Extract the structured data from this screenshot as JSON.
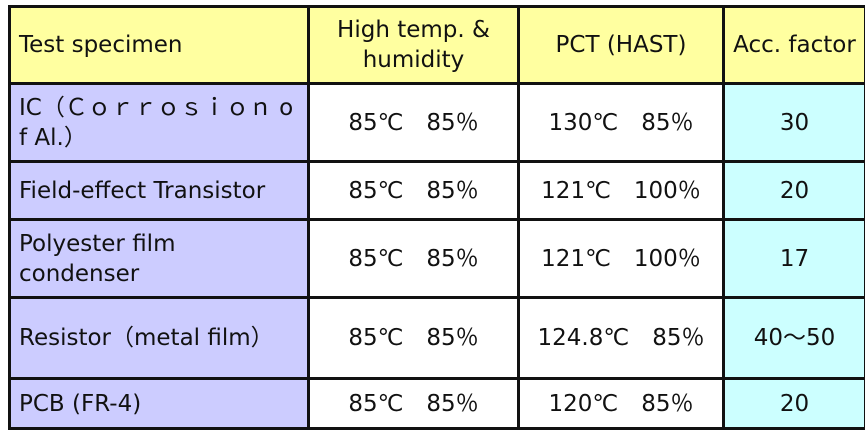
{
  "colors": {
    "header_bg": "#ffffa0",
    "specimen_bg": "#ccccff",
    "factor_bg": "#ccffff",
    "cell_bg": "#ffffff"
  },
  "header": {
    "specimen": "Test specimen",
    "high_temp": "High temp. & humidity",
    "pct": "PCT (HAST)",
    "acc_factor": "Acc. factor"
  },
  "rows": [
    {
      "specimen": "IC（Ｃｏｒｒｏｓｉｏｎ of Al.）",
      "high_temp": "85℃　85％",
      "pct": "130℃　85％",
      "acc_factor": "30"
    },
    {
      "specimen": "Field-effect Transistor",
      "high_temp": "85℃　85％",
      "pct": "121℃　100％",
      "acc_factor": "20"
    },
    {
      "specimen": "Polyester film condenser",
      "high_temp": "85℃　85％",
      "pct": "121℃　100％",
      "acc_factor": "17"
    },
    {
      "specimen": "Resistor（metal film）",
      "high_temp": "85℃　85％",
      "pct": "124.8℃　85％",
      "acc_factor": "40～50"
    },
    {
      "specimen": "PCB (FR-4)",
      "high_temp": "85℃　85％",
      "pct": "120℃　85％",
      "acc_factor": "20"
    }
  ]
}
